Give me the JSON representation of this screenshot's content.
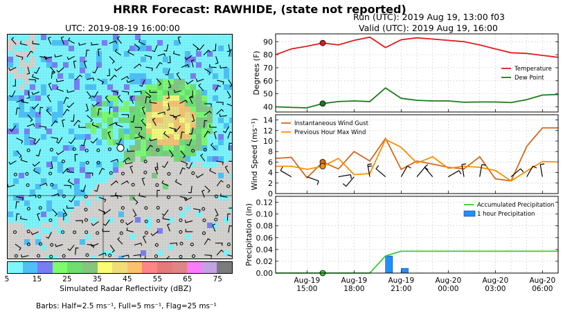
{
  "figure": {
    "title": "HRRR Forecast: RAWHIDE, (state not reported)",
    "run_label": "Run (UTC): 2019 Aug 19, 13:00 f03",
    "valid_label": "Valid (UTC): 2019 Aug 19, 16:00",
    "map_title": "UTC: 2019-08-19 16:00:00",
    "colorbar_label": "Simulated Radar Reflectivity (dBZ)",
    "colorbar_ticks": [
      "5",
      "15",
      "25",
      "35",
      "45",
      "55",
      "65",
      "75"
    ],
    "colorbar_colors": [
      "#7ef6fb",
      "#4ec0f6",
      "#7a7cf4",
      "#7efb6c",
      "#6fdd6f",
      "#86c57d",
      "#fbfb74",
      "#f1dc7a",
      "#fbc16c",
      "#fb8685",
      "#e37b7a",
      "#e08585",
      "#fb7cfb",
      "#c2a2e4",
      "#7b7b7b"
    ],
    "barb_note": "Barbs: Half=2.5 ms⁻¹, Full=5 ms⁻¹, Flag=25 ms⁻¹"
  },
  "chart_data": [
    {
      "type": "line",
      "title": "",
      "ylabel": "Degrees (F)",
      "ylim": [
        36,
        96
      ],
      "yticks": [
        40,
        50,
        60,
        70,
        80,
        90
      ],
      "x": [
        "Aug 19 13:00",
        "Aug 19 14:00",
        "Aug 19 15:00",
        "Aug 19 16:00",
        "Aug 19 17:00",
        "Aug 19 18:00",
        "Aug 19 19:00",
        "Aug 19 20:00",
        "Aug 19 21:00",
        "Aug 19 22:00",
        "Aug 19 23:00",
        "Aug 20 00:00",
        "Aug 20 01:00",
        "Aug 20 02:00",
        "Aug 20 03:00",
        "Aug 20 04:00",
        "Aug 20 05:00",
        "Aug 20 06:00",
        "Aug 20 07:00"
      ],
      "series": [
        {
          "name": "Temperature",
          "color": "#e41a1c",
          "values": [
            80,
            84.5,
            86.5,
            89,
            87.5,
            91,
            93.5,
            85.5,
            91.5,
            93,
            92,
            91,
            90,
            87.5,
            84.5,
            81.5,
            81,
            79.5,
            78
          ]
        },
        {
          "name": "Dew Point",
          "color": "#1a7a1a",
          "values": [
            40,
            39.5,
            39.2,
            42.5,
            44,
            44.5,
            44,
            54.5,
            46.5,
            45,
            44.5,
            44.5,
            43.5,
            43.7,
            43.7,
            43.2,
            45.5,
            49,
            49.5
          ]
        }
      ],
      "markers": [
        {
          "series": "Temperature",
          "x": "Aug 19 16:00"
        },
        {
          "series": "Dew Point",
          "x": "Aug 19 16:00"
        }
      ],
      "legend": "center-right",
      "grid": true
    },
    {
      "type": "line",
      "title": "",
      "ylabel": "Wind Speed (ms⁻¹)",
      "ylim": [
        0,
        15
      ],
      "yticks": [
        0,
        2,
        4,
        6,
        8,
        10,
        12,
        14
      ],
      "x": [
        "Aug 19 13:00",
        "Aug 19 14:00",
        "Aug 19 15:00",
        "Aug 19 16:00",
        "Aug 19 17:00",
        "Aug 19 18:00",
        "Aug 19 19:00",
        "Aug 19 20:00",
        "Aug 19 21:00",
        "Aug 19 22:00",
        "Aug 19 23:00",
        "Aug 20 00:00",
        "Aug 20 01:00",
        "Aug 20 02:00",
        "Aug 20 03:00",
        "Aug 20 04:00",
        "Aug 20 05:00",
        "Aug 20 06:00",
        "Aug 20 07:00"
      ],
      "series": [
        {
          "name": "Instantaneous Wind Gust",
          "color": "#d2691e",
          "values": [
            6.7,
            6.9,
            3,
            6,
            4.7,
            8,
            6.2,
            10.5,
            4.6,
            6.2,
            5.6,
            5,
            4.7,
            7,
            2.8,
            2.4,
            9,
            12.5,
            12.5
          ]
        },
        {
          "name": "Previous Hour Max Wind",
          "color": "#ff8c00",
          "values": [
            5.2,
            5.2,
            4.6,
            5.2,
            6.7,
            3.6,
            3.8,
            10.3,
            8.8,
            5.8,
            7,
            4.8,
            5.2,
            5,
            4.4,
            2.4,
            4.3,
            6.1,
            6
          ]
        }
      ],
      "markers": [
        {
          "series": "Instantaneous Wind Gust",
          "x": "Aug 19 16:00"
        },
        {
          "series": "Previous Hour Max Wind",
          "x": "Aug 19 16:00"
        }
      ],
      "legend": "top-left",
      "grid": true
    },
    {
      "type": "bar",
      "title": "",
      "ylabel": "Precipitation (in)",
      "ylim": [
        0,
        0.13
      ],
      "yticks": [
        "0.00",
        "0.02",
        "0.04",
        "0.06",
        "0.08",
        "0.10",
        "0.12"
      ],
      "x": [
        "Aug 19 13:00",
        "Aug 19 14:00",
        "Aug 19 15:00",
        "Aug 19 16:00",
        "Aug 19 17:00",
        "Aug 19 18:00",
        "Aug 19 19:00",
        "Aug 19 20:00",
        "Aug 19 21:00",
        "Aug 19 22:00",
        "Aug 19 23:00",
        "Aug 20 00:00",
        "Aug 20 01:00",
        "Aug 20 02:00",
        "Aug 20 03:00",
        "Aug 20 04:00",
        "Aug 20 05:00",
        "Aug 20 06:00",
        "Aug 20 07:00"
      ],
      "series": [
        {
          "name": "Accumulated Precipitation",
          "color": "#32cd32",
          "type": "line",
          "values": [
            0,
            0,
            0,
            0,
            0,
            0,
            0,
            0.029,
            0.037,
            0.037,
            0.037,
            0.037,
            0.037,
            0.037,
            0.037,
            0.037,
            0.037,
            0.037,
            0.037
          ]
        },
        {
          "name": "1 hour Precipitation",
          "color": "#1e90ff",
          "type": "bar",
          "values": [
            0,
            0,
            0,
            0,
            0,
            0,
            0,
            0.029,
            0.008,
            0,
            0,
            0,
            0,
            0,
            0,
            0,
            0,
            0,
            0
          ]
        }
      ],
      "markers": [
        {
          "series": "Accumulated Precipitation",
          "x": "Aug 19 16:00"
        }
      ],
      "legend": "top-right",
      "grid": true
    }
  ],
  "time_axis": {
    "tick_labels": [
      {
        "line1": "Aug-19",
        "line2": "15:00"
      },
      {
        "line1": "Aug-19",
        "line2": "18:00"
      },
      {
        "line1": "Aug-19",
        "line2": "21:00"
      },
      {
        "line1": "Aug-20",
        "line2": "00:00"
      },
      {
        "line1": "Aug-20",
        "line2": "03:00"
      },
      {
        "line1": "Aug-20",
        "line2": "06:00"
      }
    ]
  },
  "wind_barbs": [
    {
      "x": "Aug 19 14:00",
      "dir": 300,
      "speed": 5
    },
    {
      "x": "Aug 19 15:00",
      "dir": 110,
      "speed": 5
    },
    {
      "x": "Aug 19 17:00",
      "dir": 80,
      "speed": 5
    },
    {
      "x": "Aug 19 18:00",
      "dir": 220,
      "speed": 5
    },
    {
      "x": "Aug 19 19:00",
      "dir": 350,
      "speed": 10
    },
    {
      "x": "Aug 19 20:00",
      "dir": 310,
      "speed": 5
    },
    {
      "x": "Aug 19 21:00",
      "dir": 30,
      "speed": 5
    },
    {
      "x": "Aug 19 22:00",
      "dir": 40,
      "speed": 5
    },
    {
      "x": "Aug 19 23:00",
      "dir": 320,
      "speed": 5
    },
    {
      "x": "Aug 20 00:00",
      "dir": 60,
      "speed": 5
    },
    {
      "x": "Aug 20 01:00",
      "dir": 350,
      "speed": 5
    },
    {
      "x": "Aug 20 02:00",
      "dir": 10,
      "speed": 5
    },
    {
      "x": "Aug 20 04:00",
      "dir": 50,
      "speed": 5
    },
    {
      "x": "Aug 20 05:00",
      "dir": 30,
      "speed": 5
    },
    {
      "x": "Aug 20 06:00",
      "dir": 350,
      "speed": 5
    }
  ]
}
